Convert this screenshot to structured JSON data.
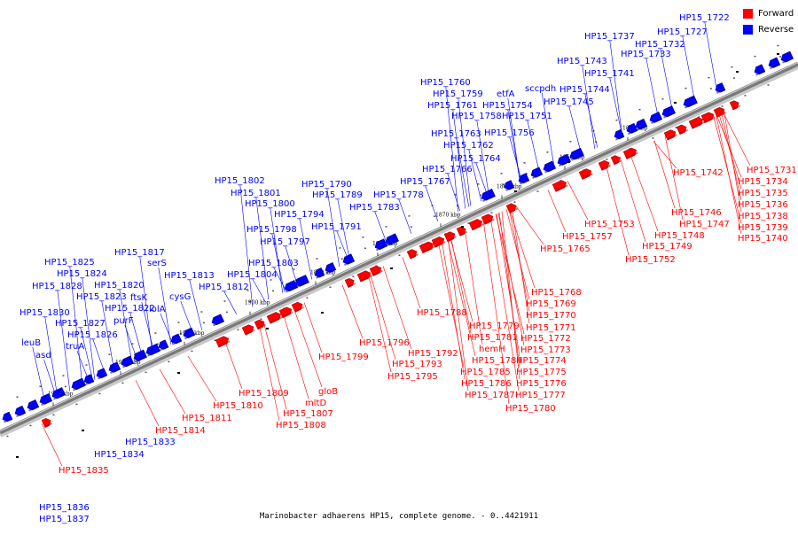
{
  "title": "Marinobacter adhaerens HP15, complete genome. - 0..4421911",
  "legend": [
    {
      "label": "Forward",
      "color": "#ff0000"
    },
    {
      "label": "Reverse",
      "color": "#0000ff"
    }
  ],
  "colors": {
    "forward": "#ff0000",
    "forward_dark": "#b00000",
    "reverse": "#0000ff",
    "reverse_dark": "#00008a",
    "backbone": "#7a7a7a"
  },
  "ticks": [
    "1840 kbp",
    "1850 kbp",
    "1860 kbp",
    "1870 kbp",
    "1880 kbp",
    "1890 kbp",
    "1900 kbp",
    "1910 kbp",
    "1920 kbp",
    "1930 kbp"
  ],
  "reverse_genes": [
    "HP15_1722",
    "HP15_1727",
    "HP15_1732",
    "HP15_1733",
    "HP15_1737",
    "HP15_1741",
    "HP15_1743",
    "HP15_1744",
    "HP15_1745",
    "sccpdh",
    "etfA",
    "HP15_1751",
    "HP15_1754",
    "HP15_1756",
    "HP15_1758",
    "HP15_1759",
    "HP15_1760",
    "HP15_1761",
    "HP15_1762",
    "HP15_1763",
    "HP15_1764",
    "HP15_1766",
    "HP15_1767",
    "HP15_1778",
    "HP15_1783",
    "HP15_1789",
    "HP15_1790",
    "HP15_1791",
    "HP15_1794",
    "HP15_1797",
    "HP15_1798",
    "HP15_1800",
    "HP15_1801",
    "HP15_1802",
    "HP15_1803",
    "HP15_1804",
    "HP15_1812",
    "HP15_1813",
    "cysG",
    "lolA",
    "ftsK",
    "serS",
    "HP15_1817",
    "HP15_1820",
    "HP15_1822",
    "purF",
    "HP15_1823",
    "HP15_1824",
    "HP15_1825",
    "HP15_1826",
    "HP15_1827",
    "HP15_1828",
    "truA",
    "HP15_1830",
    "leuB",
    "asd",
    "HP15_1833",
    "HP15_1834",
    "HP15_1836",
    "HP15_1837"
  ],
  "forward_genes": [
    "HP15_1731",
    "HP15_1734",
    "HP15_1735",
    "HP15_1736",
    "HP15_1738",
    "HP15_1739",
    "HP15_1740",
    "HP15_1742",
    "HP15_1746",
    "HP15_1747",
    "HP15_1748",
    "HP15_1749",
    "HP15_1752",
    "HP15_1753",
    "HP15_1757",
    "HP15_1765",
    "HP15_1768",
    "HP15_1769",
    "HP15_1770",
    "HP15_1771",
    "HP15_1772",
    "HP15_1773",
    "HP15_1774",
    "HP15_1775",
    "HP15_1776",
    "HP15_1777",
    "HP15_1780",
    "HP15_1779",
    "HP15_1781",
    "hemH",
    "HP15_1784",
    "HP15_1785",
    "HP15_1786",
    "HP15_1787",
    "HP15_1788",
    "HP15_1792",
    "HP15_1793",
    "HP15_1795",
    "HP15_1796",
    "HP15_1799",
    "gloB",
    "mltD",
    "HP15_1807",
    "HP15_1808",
    "HP15_1809",
    "HP15_1810",
    "HP15_1811",
    "HP15_1814",
    "HP15_1835"
  ]
}
